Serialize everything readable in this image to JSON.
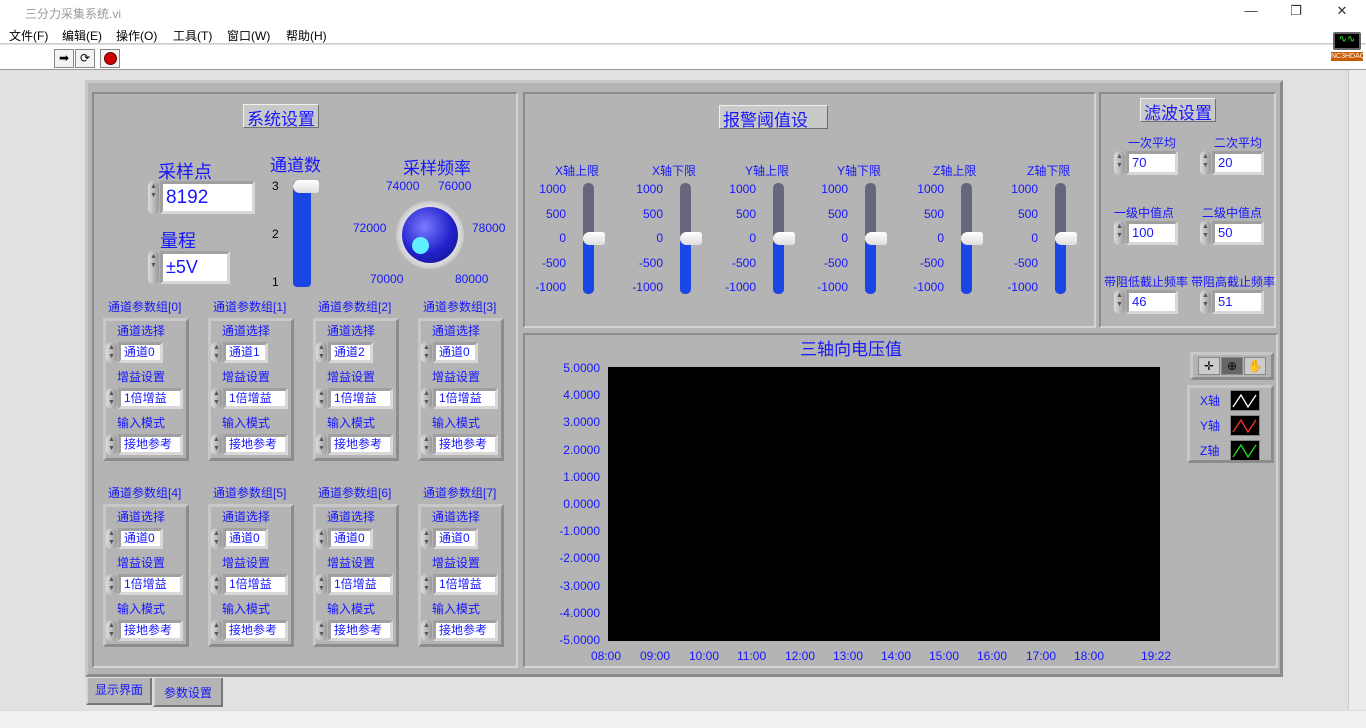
{
  "window": {
    "title": "三分力采集系统.vi",
    "minimize": "—",
    "restore": "❐",
    "close": "✕"
  },
  "menu": [
    "文件(F)",
    "编辑(E)",
    "操作(O)",
    "工具(T)",
    "窗口(W)",
    "帮助(H)"
  ],
  "toolbar": {
    "run_icon": "run-arrow",
    "continuous_icon": "run-continuously",
    "stop_icon": "abort-stop",
    "logo_text": "NC3HDAQ"
  },
  "tabs": [
    {
      "label": "显示界面",
      "selected": false
    },
    {
      "label": "参数设置",
      "selected": true
    }
  ],
  "system": {
    "title": "系统设置",
    "samples_label": "采样点",
    "samples": "8192",
    "range_label": "量程",
    "range": "±5V",
    "channels_label": "通道数",
    "channels_ticks": [
      "3",
      "2",
      "1"
    ],
    "channels_value": 3,
    "freq_label": "采样频率",
    "freq_ticks": [
      "70000",
      "72000",
      "74000",
      "76000",
      "78000",
      "80000"
    ],
    "freq_value": 70000
  },
  "groups": [
    {
      "title": "通道参数组[0]",
      "ch_label": "通道选择",
      "ch": "通道0",
      "gain_label": "增益设置",
      "gain": "1倍增益",
      "mode_label": "输入模式",
      "mode": "接地参考"
    },
    {
      "title": "通道参数组[1]",
      "ch_label": "通道选择",
      "ch": "通道1",
      "gain_label": "增益设置",
      "gain": "1倍增益",
      "mode_label": "输入模式",
      "mode": "接地参考"
    },
    {
      "title": "通道参数组[2]",
      "ch_label": "通道选择",
      "ch": "通道2",
      "gain_label": "增益设置",
      "gain": "1倍增益",
      "mode_label": "输入模式",
      "mode": "接地参考"
    },
    {
      "title": "通道参数组[3]",
      "ch_label": "通道选择",
      "ch": "通道0",
      "gain_label": "增益设置",
      "gain": "1倍增益",
      "mode_label": "输入模式",
      "mode": "接地参考"
    },
    {
      "title": "通道参数组[4]",
      "ch_label": "通道选择",
      "ch": "通道0",
      "gain_label": "增益设置",
      "gain": "1倍增益",
      "mode_label": "输入模式",
      "mode": "接地参考"
    },
    {
      "title": "通道参数组[5]",
      "ch_label": "通道选择",
      "ch": "通道0",
      "gain_label": "增益设置",
      "gain": "1倍增益",
      "mode_label": "输入模式",
      "mode": "接地参考"
    },
    {
      "title": "通道参数组[6]",
      "ch_label": "通道选择",
      "ch": "通道0",
      "gain_label": "增益设置",
      "gain": "1倍增益",
      "mode_label": "输入模式",
      "mode": "接地参考"
    },
    {
      "title": "通道参数组[7]",
      "ch_label": "通道选择",
      "ch": "通道0",
      "gain_label": "增益设置",
      "gain": "1倍增益",
      "mode_label": "输入模式",
      "mode": "接地参考"
    }
  ],
  "alarm": {
    "title": "报警阈值设",
    "ticks": [
      "1000",
      "500",
      "0",
      "-500",
      "-1000"
    ],
    "sliders": [
      {
        "label": "X轴上限",
        "value": 0
      },
      {
        "label": "X轴下限",
        "value": 0
      },
      {
        "label": "Y轴上限",
        "value": 0
      },
      {
        "label": "Y轴下限",
        "value": 0
      },
      {
        "label": "Z轴上限",
        "value": 0
      },
      {
        "label": "Z轴下限",
        "value": 0
      }
    ]
  },
  "filter": {
    "title": "滤波设置",
    "fields": [
      {
        "label": "一次平均",
        "value": "70"
      },
      {
        "label": "二次平均",
        "value": "20"
      },
      {
        "label": "一级中值点",
        "value": "100"
      },
      {
        "label": "二级中值点",
        "value": "50"
      },
      {
        "label": "带阻低截止频率",
        "value": "46"
      },
      {
        "label": "带阻高截止频率",
        "value": "51"
      }
    ]
  },
  "chart_data": {
    "type": "line",
    "title": "三轴向电压值",
    "yticks": [
      "5.0000",
      "4.0000",
      "3.0000",
      "2.0000",
      "1.0000",
      "0.0000",
      "-1.0000",
      "-2.0000",
      "-3.0000",
      "-4.0000",
      "-5.0000"
    ],
    "ylim": [
      -5,
      5
    ],
    "xticks": [
      "08:00",
      "09:00",
      "10:00",
      "11:00",
      "12:00",
      "13:00",
      "14:00",
      "15:00",
      "16:00",
      "17:00",
      "18:00",
      "19:22"
    ],
    "plot_background": "#000000",
    "series": [
      {
        "name": "X轴",
        "color": "#ffffff",
        "values": []
      },
      {
        "name": "Y轴",
        "color": "#ff3030",
        "values": []
      },
      {
        "name": "Z轴",
        "color": "#20e020",
        "values": []
      }
    ]
  },
  "palette": {
    "tools": [
      "cursor-crosshair",
      "zoom",
      "pan-hand"
    ]
  }
}
